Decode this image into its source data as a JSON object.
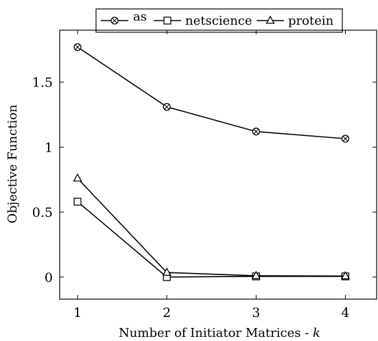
{
  "chart_data": {
    "type": "line",
    "title": "",
    "xlabel": "Number of Initiator Matrices - ",
    "xlabel_var": "k",
    "ylabel": "Objective Function",
    "x": [
      1,
      2,
      3,
      4
    ],
    "xlim": [
      0.8,
      4.35
    ],
    "ylim": [
      -0.17,
      1.9
    ],
    "xticks": [
      1,
      2,
      3,
      4
    ],
    "xtick_labels": [
      "1",
      "2",
      "3",
      "4"
    ],
    "yticks": [
      0,
      0.5,
      1,
      1.5
    ],
    "ytick_labels": [
      "0",
      "0.5",
      "1",
      "1.5"
    ],
    "grid": false,
    "legend_position": "top",
    "series": [
      {
        "name": "as",
        "marker": "circle-x",
        "values": [
          1.77,
          1.31,
          1.12,
          1.065
        ]
      },
      {
        "name": "netscience",
        "marker": "square",
        "values": [
          0.58,
          0.0,
          0.005,
          0.005
        ]
      },
      {
        "name": "protein",
        "marker": "triangle",
        "values": [
          0.76,
          0.035,
          0.01,
          0.008
        ]
      }
    ]
  }
}
